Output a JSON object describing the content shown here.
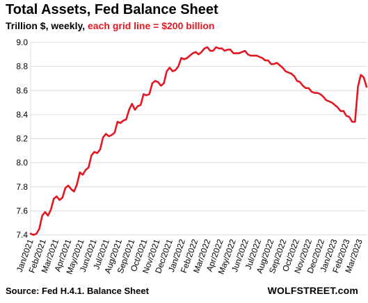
{
  "header": {
    "title": "Total Assets, Fed Balance Sheet",
    "subtitle_plain": "Trillion $, weekly, ",
    "subtitle_highlight": "each grid line = $200 billion"
  },
  "footer": {
    "source": "Source: Fed H.4.1. Balance Sheet",
    "brand": "WOLFSTREET.com"
  },
  "colors": {
    "line": "#e4161f",
    "grid": "#d9d9d9",
    "highlight": "#e4161f"
  },
  "chart_data": {
    "type": "line",
    "title": "Total Assets, Fed Balance Sheet",
    "ylabel": "Trillion $",
    "ylim": [
      7.4,
      9.0
    ],
    "y_ticks": [
      7.4,
      7.6,
      7.8,
      8.0,
      8.2,
      8.4,
      8.6,
      8.8,
      9.0
    ],
    "y_tick_labels": [
      "7.4",
      "7.6",
      "7.8",
      "8.0",
      "8.2",
      "8.4",
      "8.6",
      "8.8",
      "9.0"
    ],
    "x_tick_labels": [
      "Jan/2021",
      "Feb/2021",
      "Mar/2021",
      "Apr/2021",
      "May/2021",
      "Jun/2021",
      "Jul/2021",
      "Aug/2021",
      "Sep/2021",
      "Oct/2021",
      "Nov/2021",
      "Dec/2021",
      "Jan/2022",
      "Feb/2022",
      "Mar/2022",
      "Apr/2022",
      "May/2022",
      "Jun/2022",
      "Jul/2022",
      "Aug/2022",
      "Sep/2022",
      "Oct/2022",
      "Nov/2022",
      "Dec/2022",
      "Jan/2023",
      "Feb/2023",
      "Mar/2023"
    ],
    "grid": true,
    "legend": "none",
    "series": [
      {
        "values": [
          7.41,
          7.4,
          7.41,
          7.45,
          7.56,
          7.59,
          7.56,
          7.61,
          7.7,
          7.72,
          7.69,
          7.71,
          7.79,
          7.81,
          7.78,
          7.76,
          7.82,
          7.92,
          7.9,
          7.94,
          7.96,
          8.06,
          8.09,
          8.08,
          8.11,
          8.21,
          8.24,
          8.22,
          8.23,
          8.25,
          8.34,
          8.33,
          8.35,
          8.36,
          8.44,
          8.49,
          8.44,
          8.47,
          8.48,
          8.57,
          8.56,
          8.57,
          8.66,
          8.68,
          8.67,
          8.64,
          8.66,
          8.76,
          8.79,
          8.76,
          8.77,
          8.8,
          8.87,
          8.86,
          8.87,
          8.89,
          8.91,
          8.92,
          8.9,
          8.92,
          8.95,
          8.96,
          8.93,
          8.93,
          8.96,
          8.95,
          8.95,
          8.93,
          8.94,
          8.94,
          8.91,
          8.91,
          8.91,
          8.92,
          8.93,
          8.9,
          8.89,
          8.89,
          8.89,
          8.88,
          8.87,
          8.85,
          8.85,
          8.82,
          8.82,
          8.83,
          8.81,
          8.79,
          8.76,
          8.75,
          8.74,
          8.72,
          8.68,
          8.67,
          8.64,
          8.62,
          8.62,
          8.59,
          8.58,
          8.58,
          8.57,
          8.55,
          8.52,
          8.51,
          8.5,
          8.48,
          8.46,
          8.43,
          8.43,
          8.39,
          8.38,
          8.34,
          8.34,
          8.63,
          8.73,
          8.71,
          8.63
        ]
      }
    ]
  }
}
